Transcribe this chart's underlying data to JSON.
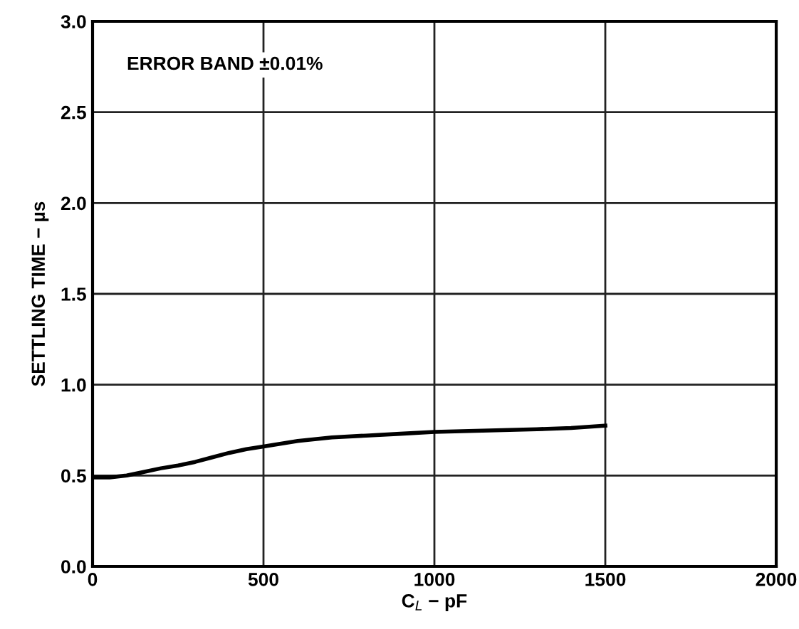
{
  "chart_data": {
    "type": "line",
    "xlabel": "C$_{L}$ − pF",
    "ylabel": "SETTLING TIME − µs",
    "annotations": [
      "ERROR BAND ±0.01%"
    ],
    "series": [
      {
        "color": "#000000",
        "x": [
          0,
          50,
          100,
          150,
          200,
          250,
          300,
          350,
          400,
          450,
          500,
          600,
          700,
          800,
          900,
          1000,
          1100,
          1200,
          1300,
          1400,
          1500
        ],
        "values": [
          0.49,
          0.49,
          0.5,
          0.52,
          0.54,
          0.555,
          0.575,
          0.6,
          0.625,
          0.645,
          0.66,
          0.69,
          0.71,
          0.72,
          0.73,
          0.74,
          0.745,
          0.75,
          0.755,
          0.762,
          0.775
        ]
      }
    ],
    "xlim": [
      0,
      2000
    ],
    "xticks": [
      0,
      500,
      1000,
      1500,
      2000
    ],
    "ylim": [
      0,
      3
    ],
    "yticks": [
      {
        "value": 0,
        "label": "0.0"
      },
      {
        "value": 0.5,
        "label": "0.5"
      },
      {
        "value": 1,
        "label": "1.0"
      },
      {
        "value": 1.5,
        "label": "1.5"
      },
      {
        "value": 2,
        "label": "2.0"
      },
      {
        "value": 2.5,
        "label": "2.5"
      },
      {
        "value": 3,
        "label": "3.0"
      }
    ],
    "grid": true,
    "legend": false,
    "marker": "none",
    "line_style": "solid"
  }
}
